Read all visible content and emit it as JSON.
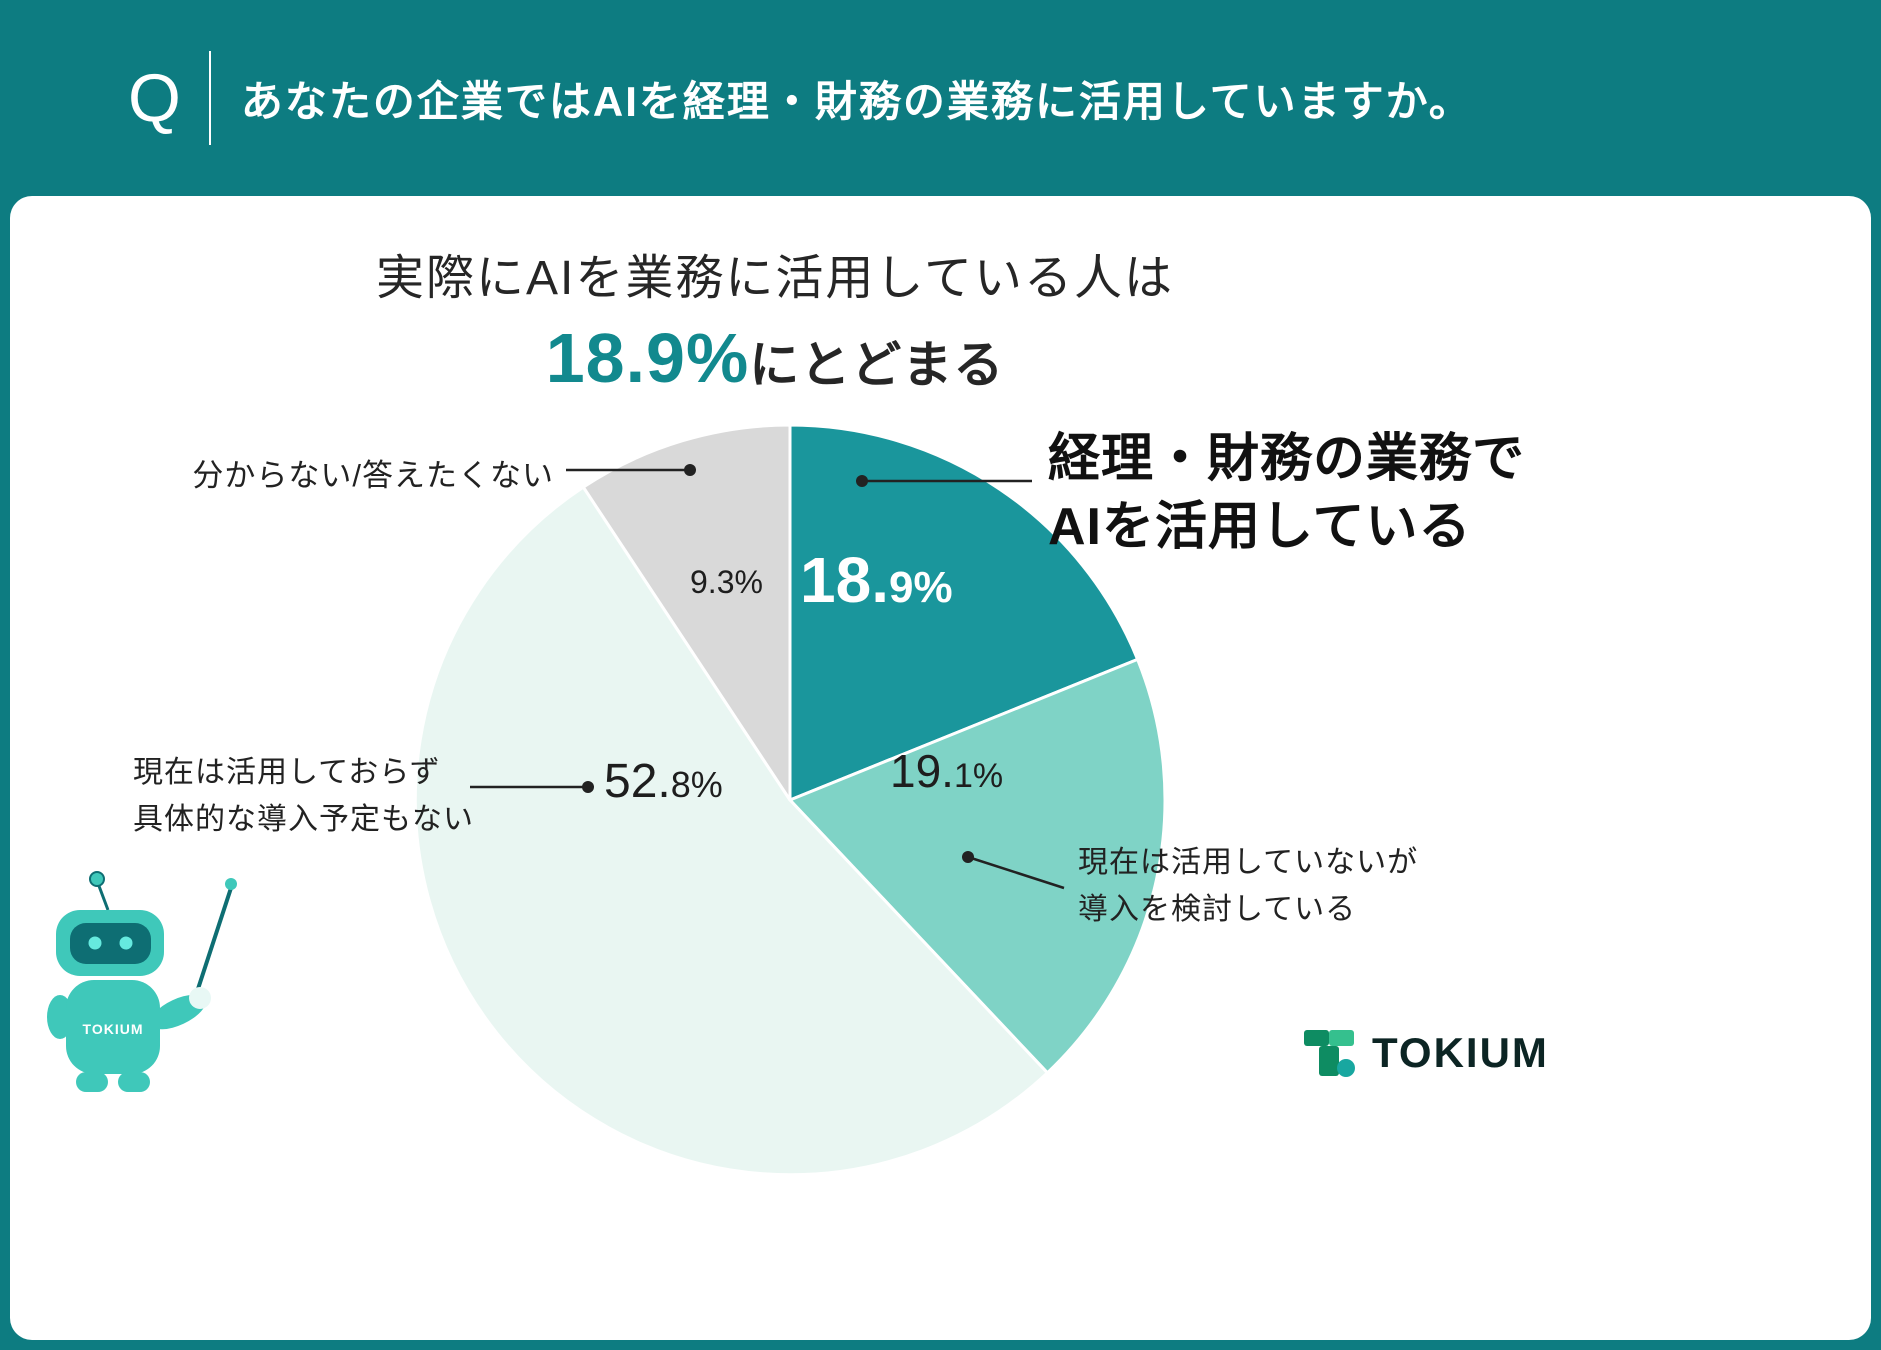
{
  "colors": {
    "brand_teal": "#0d7c81",
    "card_bg": "#ffffff",
    "text_dark": "#1f1f1f",
    "highlight_teal": "#12898e",
    "slice_active": "#1a969c",
    "slice_considering": "#7fd3c6",
    "slice_none": "#e9f6f2",
    "slice_unknown": "#d9d9d9",
    "mascot_teal": "#3fc8ba",
    "mascot_face": "#0e6e73",
    "logo_green_dark": "#0e8c62",
    "logo_green": "#35c08e",
    "logo_dot_teal": "#18a7a0"
  },
  "header": {
    "q_mark": "Q",
    "question": "あなたの企業ではAIを経理・財務の業務に活用していますか。"
  },
  "title": {
    "line1": "実際にAIを業務に活用している人は",
    "highlight": "18.9%",
    "suffix": "にとどまる"
  },
  "chart_data": {
    "type": "pie",
    "start_angle_deg": 0,
    "direction": "clockwise",
    "unit": "%",
    "slices": [
      {
        "label": "経理・財務の業務でAIを活用している",
        "value": 18.9,
        "display_main": "18.",
        "display_sub": "9%",
        "color": "#1a969c"
      },
      {
        "label": "現在は活用していないが導入を検討している",
        "value": 19.1,
        "display_main": "19.",
        "display_sub": "1%",
        "color": "#7fd3c6"
      },
      {
        "label": "現在は活用しておらず具体的な導入予定もない",
        "value": 52.8,
        "display_main": "52.",
        "display_sub": "8%",
        "color": "#e9f6f2"
      },
      {
        "label": "分からない/答えたくない",
        "value": 9.3,
        "display_main": "9.3%",
        "display_sub": "",
        "color": "#d9d9d9"
      }
    ]
  },
  "callouts": {
    "active": {
      "line1": "経理・財務の業務で",
      "line2": "AIを活用している"
    },
    "unknown": {
      "text": "分からない/答えたくない"
    },
    "none": {
      "line1": "現在は活用しておらず",
      "line2": "具体的な導入予定もない"
    },
    "considering": {
      "line1": "現在は活用していないが",
      "line2": "導入を検討している"
    }
  },
  "mascot": {
    "chest_label": "TOKIUM"
  },
  "logo": {
    "text": "TOKIUM"
  }
}
